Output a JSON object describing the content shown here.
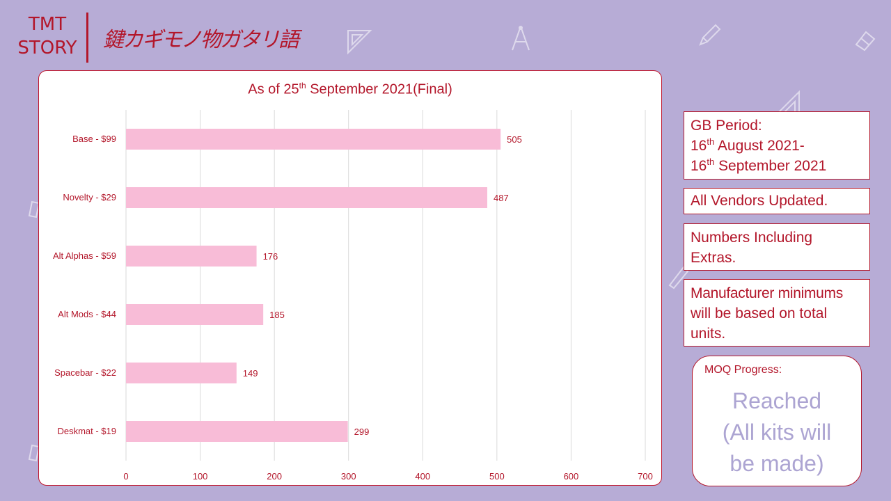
{
  "logo": {
    "line1": "TMT",
    "line2": "STORY",
    "japanese": "鍵カギモノ物ガタリ語"
  },
  "info": {
    "gb_period_label": "GB Period:",
    "gb_start_day": "16",
    "gb_start_suffix": "th",
    "gb_start_rest": " August 2021-",
    "gb_end_day": "16",
    "gb_end_suffix": "th",
    "gb_end_rest": " September 2021",
    "vendors": "All Vendors Updated.",
    "numbers_line1": "Numbers Including",
    "numbers_line2": "Extras.",
    "manufacturer_line1": "Manufacturer minimums",
    "manufacturer_line2": "will be based on total",
    "manufacturer_line3": "units."
  },
  "moq": {
    "label": "MOQ Progress:",
    "status_line1": "Reached",
    "status_line2": "(All kits will",
    "status_line3": "be made)"
  },
  "chart_data": {
    "type": "bar",
    "orientation": "horizontal",
    "title_prefix": "As of 25",
    "title_superscript": "th",
    "title_suffix": " September 2021(Final)",
    "categories": [
      "Base - $99",
      "Novelty - $29",
      "Alt Alphas - $59",
      "Alt Mods - $44",
      "Spacebar - $22",
      "Deskmat - $19"
    ],
    "values": [
      505,
      487,
      176,
      185,
      149,
      299
    ],
    "xlim": [
      0,
      700
    ],
    "xticks": [
      0,
      100,
      200,
      300,
      400,
      500,
      600,
      700
    ],
    "grid": true,
    "data_labels": true,
    "xlabel": "",
    "ylabel": "",
    "colors": {
      "bar": "#f8bcd7",
      "text": "#b3162a",
      "grid": "#d9d9d9"
    }
  }
}
